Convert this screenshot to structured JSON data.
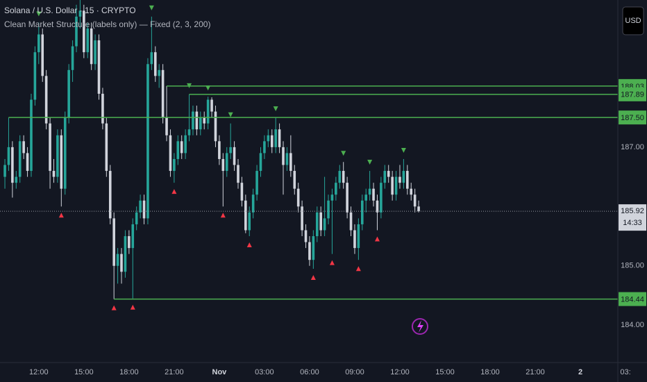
{
  "chart_data": {
    "type": "candlestick",
    "title": "Solana / U.S. Dollar · 15 · CRYPTO",
    "subtitle": "Clean Market Structure (labels only) — Fixed (2, 3, 200)",
    "currency": "USD",
    "countdown": "14:33",
    "up_color": "#26a69a",
    "down_color": "#d1d4dc",
    "level_color": "#4caf50",
    "pivot_high_color": "#4caf50",
    "pivot_low_color": "#f23645",
    "ylim": [
      183.37,
      189.48
    ],
    "yticks": [
      {
        "value": 187,
        "label": "187.00"
      },
      {
        "value": 185,
        "label": "185.00"
      },
      {
        "value": 184,
        "label": "184.00"
      }
    ],
    "xlim": [
      -1.3,
      164.8
    ],
    "xticks": [
      {
        "value": 9,
        "label": "12:00"
      },
      {
        "value": 21,
        "label": "15:00"
      },
      {
        "value": 33,
        "label": "18:00"
      },
      {
        "value": 45,
        "label": "21:00"
      },
      {
        "value": 57,
        "label": "Nov"
      },
      {
        "value": 69,
        "label": "03:00"
      },
      {
        "value": 81,
        "label": "06:00"
      },
      {
        "value": 93,
        "label": "09:00"
      },
      {
        "value": 105,
        "label": "12:00"
      },
      {
        "value": 117,
        "label": "15:00"
      },
      {
        "value": 129,
        "label": "18:00"
      },
      {
        "value": 141,
        "label": "21:00"
      },
      {
        "value": 153,
        "label": "2"
      },
      {
        "value": 165,
        "label": "03:"
      }
    ],
    "levels": [
      188.03,
      187.89,
      {
        "value": 187.5,
        "label": "187.50"
      },
      184.44
    ],
    "candles": [
      [
        186.5,
        186.8,
        186.3,
        186.7
      ],
      [
        186.7,
        187.5,
        186.6,
        187.0
      ],
      [
        187.0,
        187.1,
        186.15,
        186.4
      ],
      [
        186.4,
        186.6,
        186.3,
        186.5
      ],
      [
        186.5,
        187.2,
        186.4,
        187.1
      ],
      [
        187.1,
        187.2,
        186.8,
        186.9
      ],
      [
        186.9,
        187.0,
        186.5,
        186.6
      ],
      [
        186.6,
        187.9,
        186.5,
        187.8
      ],
      [
        187.8,
        188.7,
        187.7,
        188.6
      ],
      [
        188.6,
        189.1,
        188.4,
        188.9
      ],
      [
        188.9,
        189.0,
        188.1,
        188.2
      ],
      [
        188.2,
        188.3,
        187.3,
        187.4
      ],
      [
        187.4,
        187.5,
        186.3,
        186.6
      ],
      [
        186.6,
        186.8,
        186.4,
        186.5
      ],
      [
        186.5,
        187.3,
        186.4,
        187.2
      ],
      [
        187.2,
        187.3,
        186.0,
        186.3
      ],
      [
        186.3,
        187.6,
        186.2,
        187.5
      ],
      [
        187.5,
        188.4,
        187.4,
        188.3
      ],
      [
        188.3,
        188.8,
        188.1,
        188.7
      ],
      [
        188.7,
        189.4,
        188.6,
        189.2
      ],
      [
        189.2,
        189.6,
        189.0,
        189.3
      ],
      [
        189.3,
        189.4,
        188.5,
        188.6
      ],
      [
        188.6,
        189.1,
        188.5,
        189.0
      ],
      [
        189.0,
        189.1,
        188.3,
        188.4
      ],
      [
        188.4,
        188.9,
        188.3,
        188.8
      ],
      [
        188.8,
        188.9,
        187.8,
        187.9
      ],
      [
        187.9,
        188.0,
        187.3,
        187.4
      ],
      [
        187.4,
        187.5,
        186.5,
        186.6
      ],
      [
        186.6,
        186.7,
        185.7,
        185.8
      ],
      [
        185.8,
        185.9,
        184.44,
        185.0
      ],
      [
        185.0,
        185.3,
        184.7,
        185.2
      ],
      [
        185.2,
        185.3,
        184.7,
        184.9
      ],
      [
        184.9,
        185.6,
        184.8,
        185.5
      ],
      [
        185.5,
        185.6,
        185.2,
        185.3
      ],
      [
        185.3,
        185.8,
        184.45,
        185.7
      ],
      [
        185.7,
        186.0,
        185.6,
        185.9
      ],
      [
        185.9,
        186.2,
        185.8,
        186.1
      ],
      [
        186.1,
        186.2,
        185.7,
        185.8
      ],
      [
        185.8,
        188.5,
        185.7,
        188.4
      ],
      [
        188.4,
        189.2,
        188.3,
        188.6
      ],
      [
        188.6,
        188.7,
        188.1,
        188.2
      ],
      [
        188.2,
        188.4,
        188.0,
        188.3
      ],
      [
        188.3,
        188.4,
        187.4,
        187.5
      ],
      [
        187.5,
        188.03,
        187.1,
        187.2
      ],
      [
        187.2,
        187.3,
        186.5,
        186.6
      ],
      [
        186.6,
        186.9,
        186.4,
        186.8
      ],
      [
        186.8,
        187.2,
        186.7,
        187.1
      ],
      [
        187.1,
        187.2,
        186.8,
        186.9
      ],
      [
        186.9,
        187.3,
        186.8,
        187.2
      ],
      [
        187.2,
        187.89,
        187.1,
        187.3
      ],
      [
        187.3,
        187.7,
        187.2,
        187.6
      ],
      [
        187.6,
        187.7,
        187.2,
        187.3
      ],
      [
        187.3,
        187.6,
        187.2,
        187.5
      ],
      [
        187.5,
        187.6,
        187.3,
        187.4
      ],
      [
        187.4,
        187.85,
        187.3,
        187.8
      ],
      [
        187.8,
        187.84,
        187.5,
        187.6
      ],
      [
        187.6,
        187.7,
        187.0,
        187.1
      ],
      [
        187.1,
        187.2,
        186.7,
        186.8
      ],
      [
        186.8,
        186.9,
        186.0,
        186.6
      ],
      [
        186.6,
        187.0,
        186.5,
        186.9
      ],
      [
        186.9,
        187.4,
        186.8,
        187.0
      ],
      [
        187.0,
        187.1,
        186.6,
        186.7
      ],
      [
        186.7,
        186.8,
        186.3,
        186.4
      ],
      [
        186.4,
        186.5,
        186.0,
        186.1
      ],
      [
        186.1,
        186.2,
        185.55,
        185.6
      ],
      [
        185.6,
        186.0,
        185.5,
        185.9
      ],
      [
        185.9,
        186.3,
        185.8,
        186.2
      ],
      [
        186.2,
        186.7,
        186.1,
        186.6
      ],
      [
        186.6,
        187.0,
        186.5,
        186.9
      ],
      [
        186.9,
        187.2,
        186.8,
        187.1
      ],
      [
        187.1,
        187.3,
        187.0,
        187.2
      ],
      [
        187.2,
        187.3,
        186.9,
        187.0
      ],
      [
        187.0,
        187.5,
        186.9,
        187.3
      ],
      [
        187.3,
        187.4,
        186.9,
        187.0
      ],
      [
        187.0,
        187.1,
        186.2,
        186.7
      ],
      [
        186.7,
        187.0,
        186.6,
        186.9
      ],
      [
        186.9,
        187.2,
        186.5,
        186.6
      ],
      [
        186.6,
        186.7,
        186.2,
        186.3
      ],
      [
        186.3,
        186.4,
        185.9,
        186.0
      ],
      [
        186.0,
        186.1,
        185.5,
        185.6
      ],
      [
        185.6,
        185.7,
        185.3,
        185.4
      ],
      [
        185.4,
        185.5,
        185.0,
        185.1
      ],
      [
        185.1,
        185.6,
        184.95,
        185.5
      ],
      [
        185.5,
        186.0,
        185.4,
        185.9
      ],
      [
        185.9,
        186.0,
        185.5,
        185.6
      ],
      [
        185.6,
        186.5,
        185.5,
        185.8
      ],
      [
        185.8,
        186.2,
        185.7,
        186.1
      ],
      [
        186.1,
        186.3,
        185.2,
        186.2
      ],
      [
        186.2,
        186.5,
        186.1,
        186.4
      ],
      [
        186.4,
        186.7,
        186.3,
        186.6
      ],
      [
        186.6,
        186.75,
        186.3,
        186.4
      ],
      [
        186.4,
        186.5,
        185.8,
        185.9
      ],
      [
        185.9,
        186.0,
        185.5,
        185.6
      ],
      [
        185.6,
        185.7,
        185.2,
        185.3
      ],
      [
        185.3,
        185.8,
        185.1,
        185.7
      ],
      [
        185.7,
        186.2,
        185.6,
        186.1
      ],
      [
        186.1,
        186.3,
        185.9,
        186.2
      ],
      [
        186.2,
        186.6,
        186.1,
        186.3
      ],
      [
        186.3,
        186.4,
        186.0,
        186.1
      ],
      [
        186.1,
        186.2,
        185.6,
        185.9
      ],
      [
        185.9,
        186.5,
        185.8,
        186.4
      ],
      [
        186.4,
        186.7,
        186.3,
        186.6
      ],
      [
        186.6,
        186.7,
        186.4,
        186.5
      ],
      [
        186.5,
        186.6,
        186.1,
        186.2
      ],
      [
        186.2,
        186.6,
        186.1,
        186.5
      ],
      [
        186.5,
        186.7,
        186.3,
        186.4
      ],
      [
        186.4,
        186.8,
        186.3,
        186.6
      ],
      [
        186.6,
        186.7,
        186.2,
        186.3
      ],
      [
        186.3,
        186.4,
        186.1,
        186.2
      ],
      [
        186.2,
        186.3,
        185.9,
        186.0
      ],
      [
        186.0,
        186.1,
        185.9,
        185.92
      ]
    ]
  }
}
